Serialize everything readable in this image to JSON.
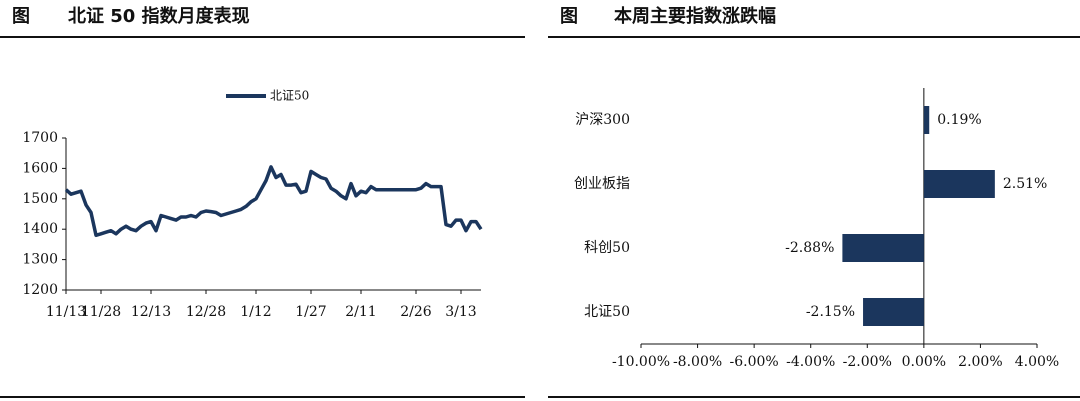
{
  "chart_data": [
    {
      "type": "line",
      "title_prefix": "图",
      "title": "北证 50 指数月度表现",
      "categories": [
        "11/13",
        null,
        null,
        null,
        null,
        null,
        null,
        "11/28",
        null,
        null,
        null,
        null,
        null,
        null,
        null,
        null,
        null,
        "12/13",
        null,
        null,
        null,
        null,
        null,
        null,
        null,
        null,
        null,
        null,
        "12/28",
        null,
        null,
        null,
        null,
        null,
        null,
        null,
        null,
        null,
        "1/12",
        null,
        null,
        null,
        null,
        null,
        null,
        null,
        null,
        null,
        null,
        "1/27",
        null,
        null,
        null,
        null,
        null,
        null,
        null,
        null,
        null,
        "2/11",
        null,
        null,
        null,
        null,
        null,
        null,
        null,
        null,
        null,
        null,
        "2/26",
        null,
        null,
        null,
        null,
        null,
        null,
        null,
        null,
        "3/13",
        null,
        null,
        null,
        null
      ],
      "series": [
        {
          "name": "北证50",
          "color": "#1b365d",
          "values": [
            1530,
            1515,
            1520,
            1525,
            1480,
            1455,
            1380,
            1385,
            1390,
            1395,
            1385,
            1400,
            1410,
            1400,
            1395,
            1410,
            1420,
            1425,
            1395,
            1445,
            1440,
            1435,
            1430,
            1440,
            1440,
            1445,
            1440,
            1455,
            1460,
            1458,
            1455,
            1445,
            1450,
            1455,
            1460,
            1465,
            1475,
            1490,
            1500,
            1530,
            1560,
            1605,
            1570,
            1580,
            1545,
            1545,
            1548,
            1520,
            1525,
            1590,
            1580,
            1570,
            1565,
            1535,
            1525,
            1510,
            1500,
            1550,
            1510,
            1525,
            1520,
            1540,
            1530,
            1530,
            1530,
            1530,
            1530,
            1530,
            1530,
            1530,
            1530,
            1535,
            1550,
            1540,
            1540,
            1540,
            1415,
            1410,
            1430,
            1430,
            1395,
            1425,
            1425,
            1400
          ]
        }
      ],
      "ylim": [
        1200,
        1700
      ],
      "yticks": [
        1200,
        1300,
        1400,
        1500,
        1600,
        1700
      ],
      "legend": "top"
    },
    {
      "type": "hbar",
      "title_prefix": "图",
      "title": "本周主要指数涨跌幅",
      "categories": [
        "沪深300",
        "创业板指",
        "科创50",
        "北证50"
      ],
      "values": [
        0.19,
        2.51,
        -2.88,
        -2.15
      ],
      "value_labels": [
        "0.19%",
        "2.51%",
        "-2.88%",
        "-2.15%"
      ],
      "color": "#1b365d",
      "xlim": [
        -10,
        4
      ],
      "xticks": [
        {
          "value": -10,
          "label": "-10.00%"
        },
        {
          "value": -8,
          "label": "-8.00%"
        },
        {
          "value": -6,
          "label": "-6.00%"
        },
        {
          "value": -4,
          "label": "-4.00%"
        },
        {
          "value": -2,
          "label": "-2.00%"
        },
        {
          "value": 0,
          "label": "0.00%"
        },
        {
          "value": 2,
          "label": "2.00%"
        },
        {
          "value": 4,
          "label": "4.00%"
        }
      ]
    }
  ]
}
